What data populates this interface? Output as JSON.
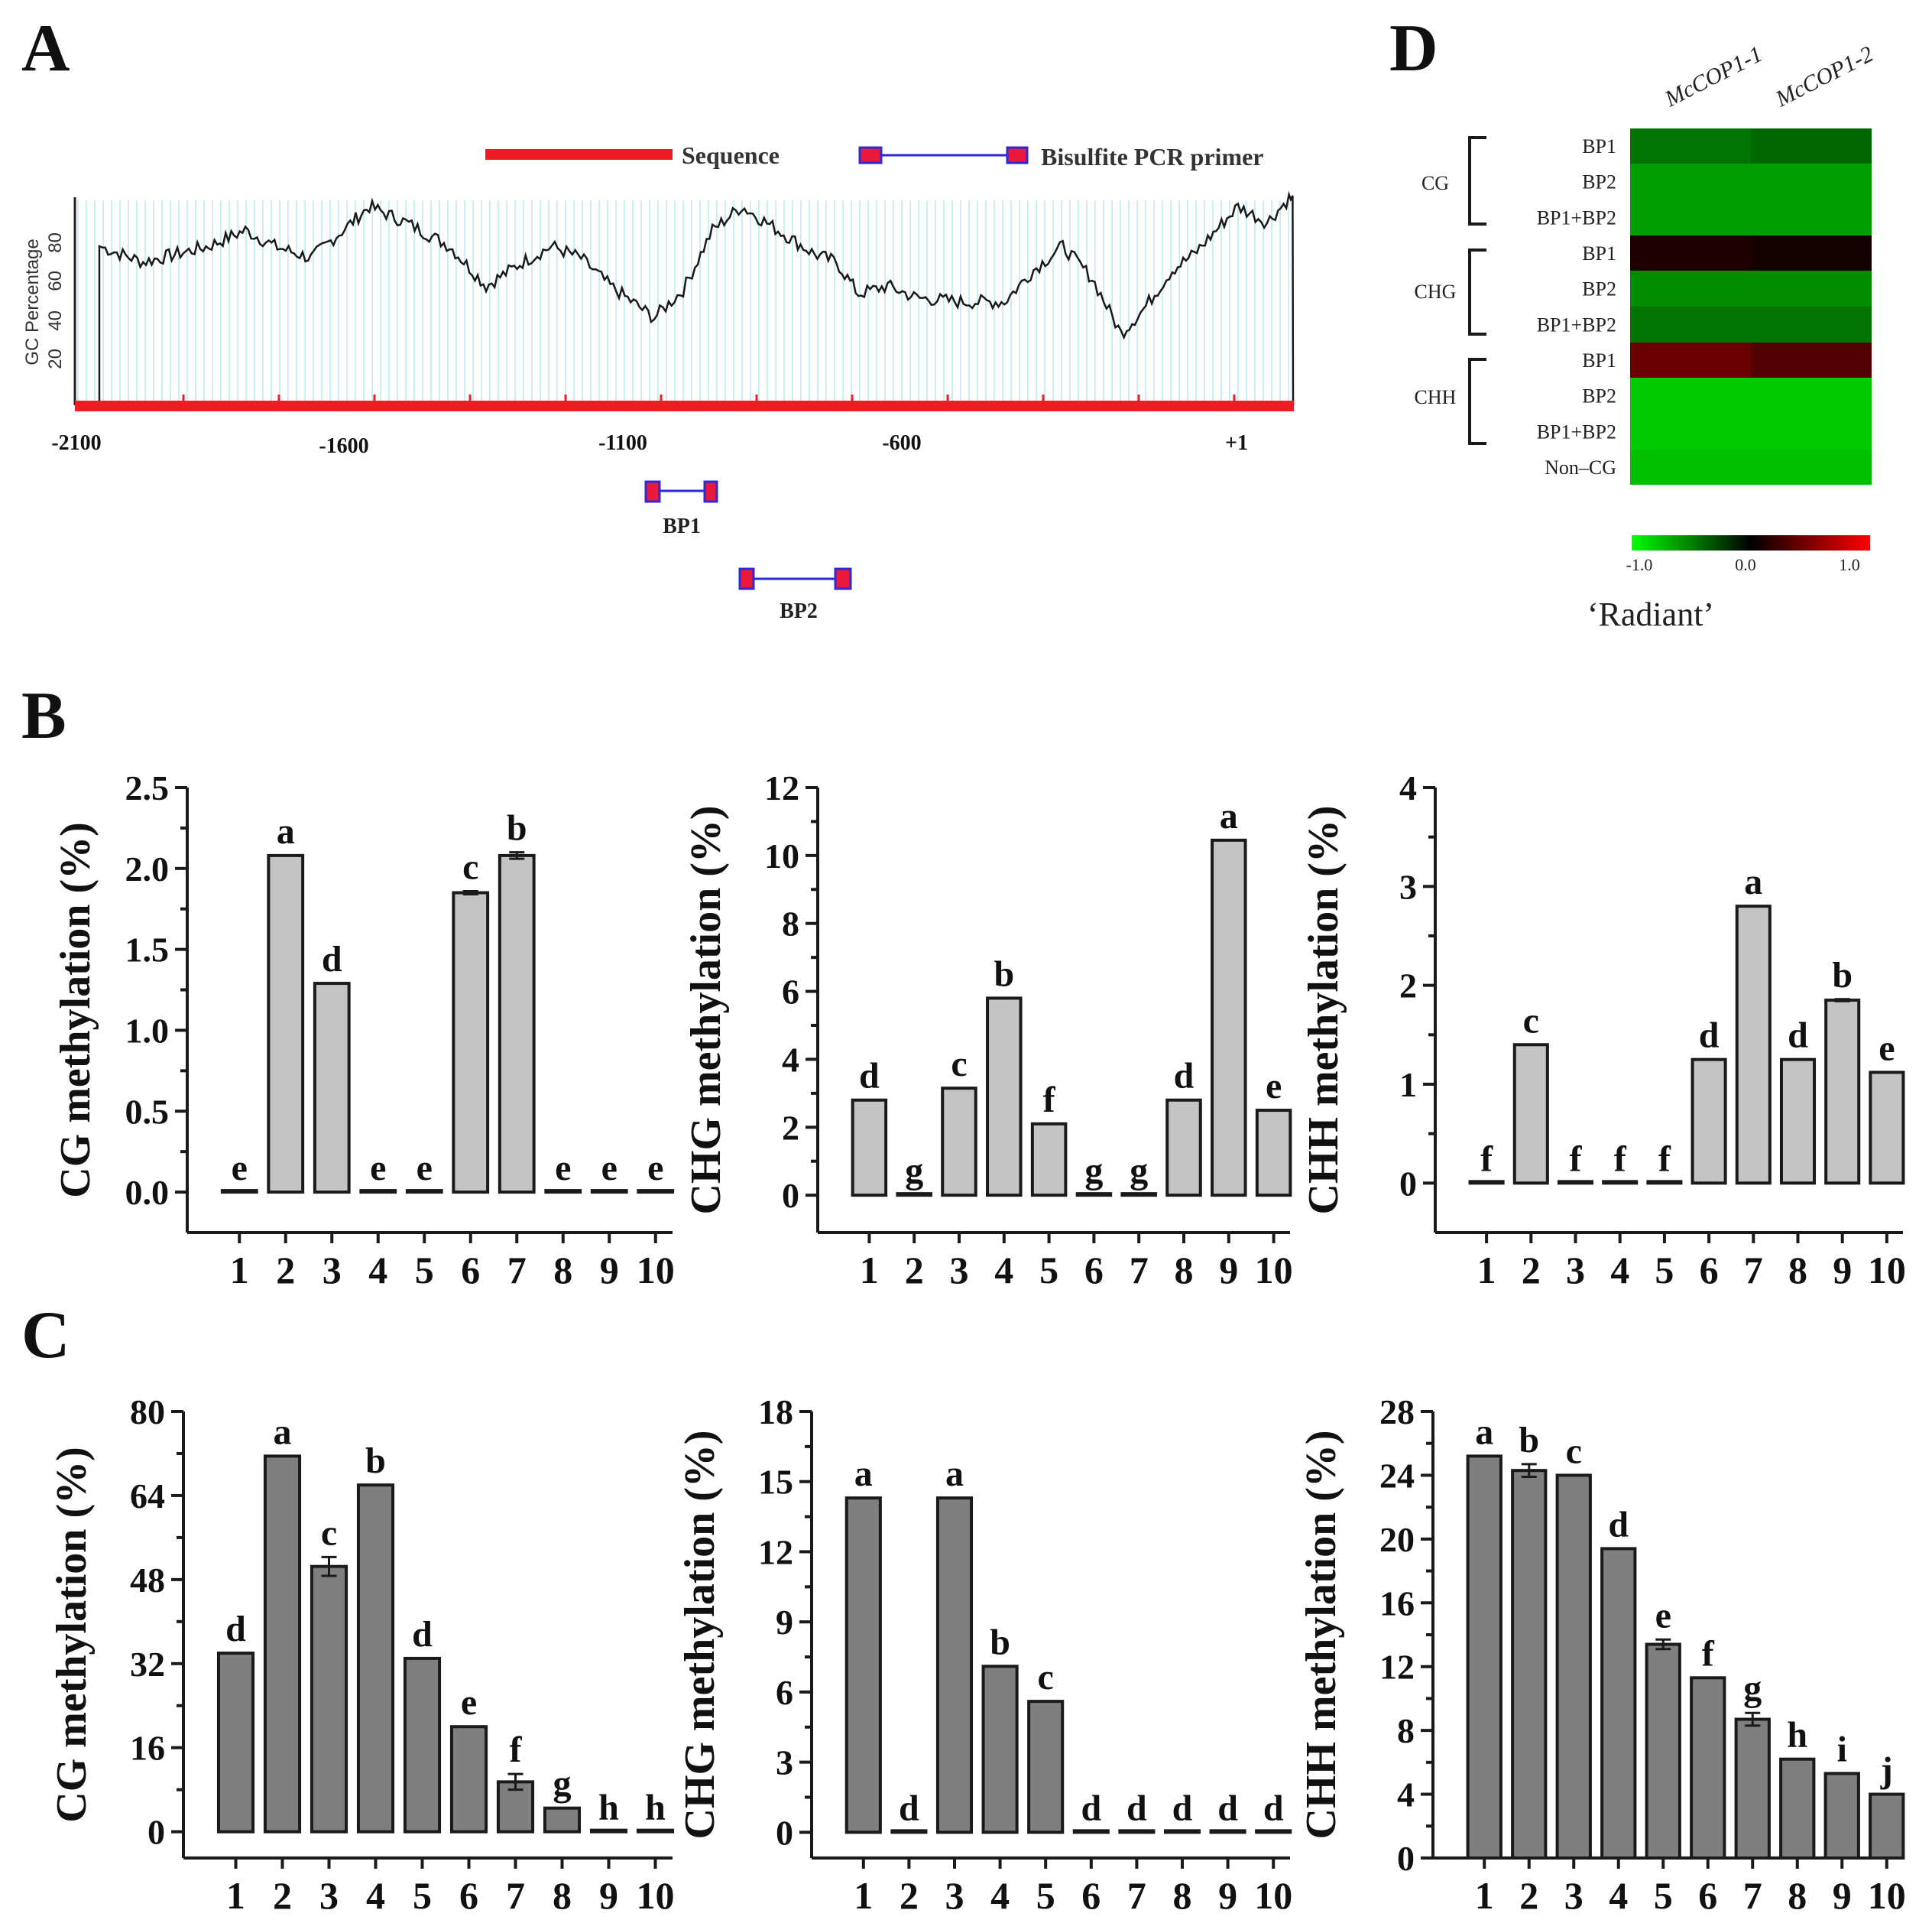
{
  "panels": {
    "a": "A",
    "b": "B",
    "c": "C",
    "d": "D"
  },
  "gc_plot": {
    "legend": {
      "sequence": "Sequence",
      "primer": "Bisulfite PCR primer"
    },
    "y_label": "GC Percentage",
    "y_ticks": [
      "20",
      "40",
      "60",
      "80"
    ],
    "x_ticks": [
      "-2100",
      "-1600",
      "-1100",
      "-600",
      "+1"
    ],
    "primers": [
      "BP1",
      "BP2"
    ],
    "colors": {
      "sequence": "#ee1c24",
      "grid": "#b9ecf2",
      "primer_line": "#2a2ad8",
      "primer_box": "#e8193a"
    }
  },
  "heatmap": {
    "columns": [
      "McCOP1-1",
      "McCOP1-2"
    ],
    "groups": [
      "CG",
      "CHG",
      "CHH"
    ],
    "rows": [
      {
        "label": "BP1",
        "values": [
          -0.45,
          -0.4
        ]
      },
      {
        "label": "BP2",
        "values": [
          -0.62,
          -0.62
        ]
      },
      {
        "label": "BP1+BP2",
        "values": [
          -0.62,
          -0.62
        ]
      },
      {
        "label": "BP1",
        "values": [
          0.12,
          0.08
        ]
      },
      {
        "label": "BP2",
        "values": [
          -0.55,
          -0.55
        ]
      },
      {
        "label": "BP1+BP2",
        "values": [
          -0.45,
          -0.45
        ]
      },
      {
        "label": "BP1",
        "values": [
          0.42,
          0.32
        ]
      },
      {
        "label": "BP2",
        "values": [
          -0.8,
          -0.8
        ]
      },
      {
        "label": "BP1+BP2",
        "values": [
          -0.8,
          -0.8
        ]
      },
      {
        "label": "Non–CG",
        "values": [
          -0.75,
          -0.75
        ]
      }
    ],
    "scale_labels": [
      "-1.0",
      "0.0",
      "1.0"
    ],
    "caption": "‘Radiant’"
  },
  "chart_data": [
    {
      "id": "B1",
      "type": "bar",
      "categories": [
        "1",
        "2",
        "3",
        "4",
        "5",
        "6",
        "7",
        "8",
        "9",
        "10"
      ],
      "values": [
        0,
        2.08,
        1.29,
        0,
        0,
        1.85,
        2.08,
        0,
        0,
        0
      ],
      "errors": [
        0,
        0,
        0,
        0,
        0,
        0.01,
        0.02,
        0,
        0,
        0
      ],
      "letters": [
        "e",
        "a",
        "d",
        "e",
        "e",
        "c",
        "b",
        "e",
        "e",
        "e"
      ],
      "ylabel": "CG methylation (%)",
      "ylim": [
        -0.25,
        2.5
      ],
      "yticks": [
        0,
        0.5,
        1.0,
        1.5,
        2.0,
        2.5
      ],
      "ytick_labels": [
        "0.0",
        "0.5",
        "1.0",
        "1.5",
        "2.0",
        "2.5"
      ],
      "bar_color": "#c4c4c4"
    },
    {
      "id": "B2",
      "type": "bar",
      "categories": [
        "1",
        "2",
        "3",
        "4",
        "5",
        "6",
        "7",
        "8",
        "9",
        "10"
      ],
      "values": [
        2.8,
        0,
        3.15,
        5.8,
        2.1,
        0,
        0,
        2.8,
        10.45,
        2.5
      ],
      "errors": [
        0,
        0,
        0,
        0,
        0,
        0,
        0,
        0,
        0,
        0
      ],
      "letters": [
        "d",
        "g",
        "c",
        "b",
        "f",
        "g",
        "g",
        "d",
        "a",
        "e"
      ],
      "ylabel": "CHG methylation (%)",
      "ylim": [
        -1.1,
        12
      ],
      "yticks": [
        0,
        2,
        4,
        6,
        8,
        10,
        12
      ],
      "ytick_labels": [
        "0",
        "2",
        "4",
        "6",
        "8",
        "10",
        "12"
      ],
      "bar_color": "#c4c4c4"
    },
    {
      "id": "B3",
      "type": "bar",
      "categories": [
        "1",
        "2",
        "3",
        "4",
        "5",
        "6",
        "7",
        "8",
        "9",
        "10"
      ],
      "values": [
        0,
        1.4,
        0,
        0,
        0,
        1.25,
        2.8,
        1.25,
        1.85,
        1.12
      ],
      "errors": [
        0,
        0,
        0,
        0,
        0,
        0,
        0,
        0,
        0.01,
        0
      ],
      "letters": [
        "f",
        "c",
        "f",
        "f",
        "f",
        "d",
        "a",
        "d",
        "b",
        "e"
      ],
      "ylabel": "CHH methylation (%)",
      "ylim": [
        -0.5,
        4
      ],
      "yticks": [
        0,
        1,
        2,
        3,
        4
      ],
      "ytick_labels": [
        "0",
        "1",
        "2",
        "3",
        "4"
      ],
      "bar_color": "#c4c4c4"
    },
    {
      "id": "C1",
      "type": "bar",
      "categories": [
        "1",
        "2",
        "3",
        "4",
        "5",
        "6",
        "7",
        "8",
        "9",
        "10"
      ],
      "values": [
        34,
        71.5,
        50.5,
        66,
        33,
        20,
        9.5,
        4.5,
        0,
        0
      ],
      "errors": [
        0,
        0,
        1.8,
        0,
        0,
        0,
        1.5,
        0,
        0,
        0
      ],
      "letters": [
        "d",
        "a",
        "c",
        "b",
        "d",
        "e",
        "f",
        "g",
        "h",
        "h"
      ],
      "ylabel": "CG methylation (%)",
      "ylim": [
        -5,
        80
      ],
      "yticks": [
        0,
        16,
        32,
        48,
        64,
        80
      ],
      "ytick_labels": [
        "0",
        "16",
        "32",
        "48",
        "64",
        "80"
      ],
      "bar_color": "#7f7f7f"
    },
    {
      "id": "C2",
      "type": "bar",
      "categories": [
        "1",
        "2",
        "3",
        "4",
        "5",
        "6",
        "7",
        "8",
        "9",
        "10"
      ],
      "values": [
        14.3,
        0,
        14.3,
        7.1,
        5.6,
        0,
        0,
        0,
        0,
        0
      ],
      "errors": [
        0,
        0,
        0,
        0,
        0,
        0,
        0,
        0,
        0,
        0
      ],
      "letters": [
        "a",
        "d",
        "a",
        "b",
        "c",
        "d",
        "d",
        "d",
        "d",
        "d"
      ],
      "ylabel": "CHG methylation (%)",
      "ylim": [
        -1.1,
        18
      ],
      "yticks": [
        0,
        3,
        6,
        9,
        12,
        15,
        18
      ],
      "ytick_labels": [
        "0",
        "3",
        "6",
        "9",
        "12",
        "15",
        "18"
      ],
      "bar_color": "#7f7f7f"
    },
    {
      "id": "C3",
      "type": "bar",
      "categories": [
        "1",
        "2",
        "3",
        "4",
        "5",
        "6",
        "7",
        "8",
        "9",
        "10"
      ],
      "values": [
        25.2,
        24.3,
        24.0,
        19.4,
        13.4,
        11.3,
        8.7,
        6.2,
        5.3,
        4.0
      ],
      "errors": [
        0,
        0.4,
        0,
        0,
        0.3,
        0,
        0.4,
        0,
        0,
        0
      ],
      "letters": [
        "a",
        "b",
        "c",
        "d",
        "e",
        "f",
        "g",
        "h",
        "i",
        "j"
      ],
      "ylabel": "CHH methylation (%)",
      "ylim": [
        0,
        28
      ],
      "yticks": [
        0,
        4,
        8,
        12,
        16,
        20,
        24,
        28
      ],
      "ytick_labels": [
        "0",
        "4",
        "8",
        "12",
        "16",
        "20",
        "24",
        "28"
      ],
      "bar_color": "#7f7f7f"
    }
  ]
}
